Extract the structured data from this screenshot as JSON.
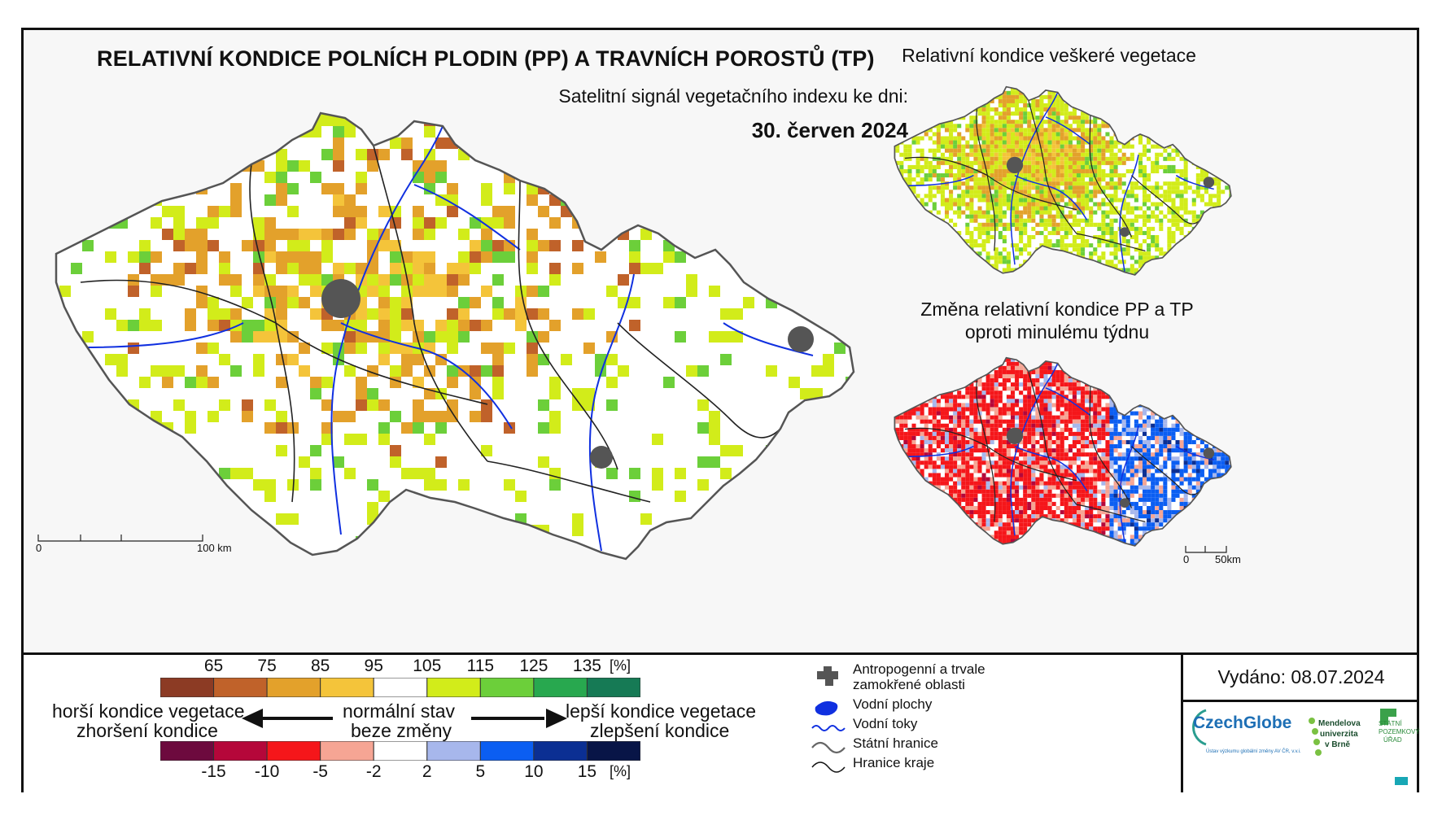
{
  "title": "RELATIVNÍ KONDICE POLNÍCH PLODIN (PP) A TRAVNÍCH POROSTŮ (TP)",
  "subtitle": "Satelitní signál vegetačního indexu ke dni:",
  "date": "30. červen 2024",
  "inset_top_title": "Relativní kondice veškeré vegetace",
  "inset_bottom_title_line1": "Změna relativní kondice PP a TP",
  "inset_bottom_title_line2": "oproti minulému týdnu",
  "main_scale": {
    "start": "0",
    "end": "100 km"
  },
  "inset_scale": {
    "start": "0",
    "end": "50km"
  },
  "condition_legend": {
    "ticks": [
      "65",
      "75",
      "85",
      "95",
      "105",
      "115",
      "125",
      "135"
    ],
    "unit": "[%]",
    "colors": [
      "#8c3b24",
      "#c0622a",
      "#e3a12b",
      "#f4c43a",
      "#ffffff",
      "#d2ec1a",
      "#6ccf3a",
      "#28a84f",
      "#167a55"
    ]
  },
  "change_legend": {
    "ticks": [
      "-15",
      "-10",
      "-5",
      "-2",
      "2",
      "5",
      "10",
      "15"
    ],
    "unit": "[%]",
    "colors": [
      "#6d0a3e",
      "#b5073a",
      "#f5161a",
      "#f6a594",
      "#ffffff",
      "#a7b7ec",
      "#0b5ef2",
      "#0b2f93",
      "#081547"
    ]
  },
  "labels": {
    "worse_1": "horší kondice vegetace",
    "worse_2": "zhoršení kondice",
    "normal_1": "normální stav",
    "normal_2": "beze změny",
    "better_1": "lepší kondice vegetace",
    "better_2": "zlepšení kondice"
  },
  "map_legend": {
    "urban_1": "Antropogenní a trvale",
    "urban_2": "zamokřené oblasti",
    "water_bodies": "Vodní plochy",
    "rivers": "Vodní toky",
    "state_border": "Státní hranice",
    "region_border": "Hranice kraje"
  },
  "issued": "Vydáno: 08.07.2024",
  "logos": {
    "czechglobe": "CzechGlobe",
    "czechglobe_sub": "Ústav výzkumu globální změny AV ČR, v.v.i.",
    "mendel_1": "Mendelova",
    "mendel_2": "univerzita",
    "mendel_3": "v Brně",
    "spu_1": "STÁTNÍ",
    "spu_2": "POZEMKOVÝ",
    "spu_3": "ÚŘAD"
  }
}
